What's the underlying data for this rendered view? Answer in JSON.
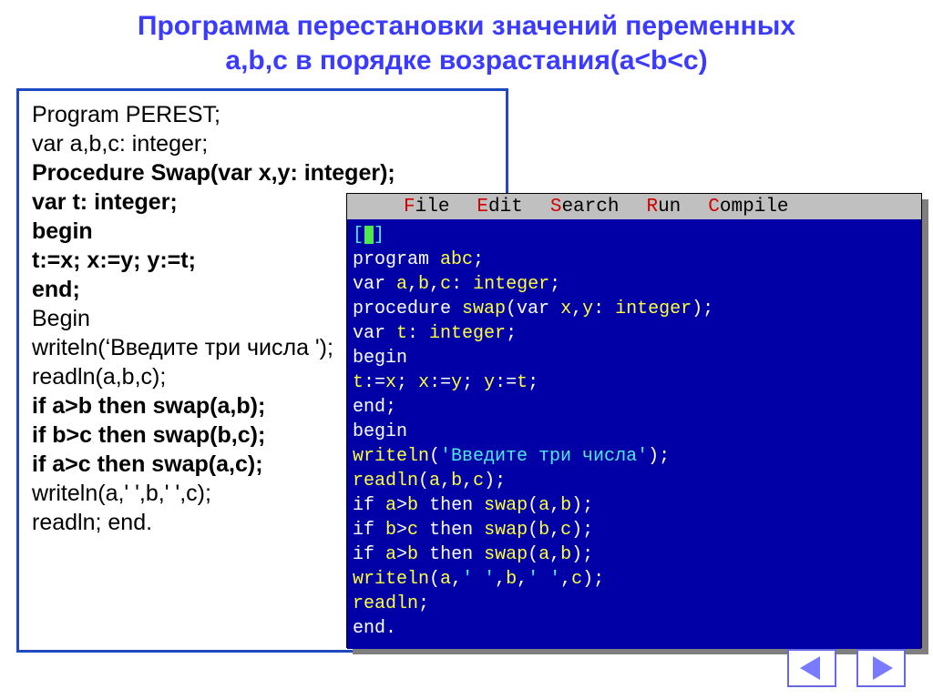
{
  "colors": {
    "title": "#3b3bff",
    "border": "#2048c0",
    "ide_bg": "#0000a6",
    "ide_menu_bg": "#c0c0c0",
    "ide_hotkey": "#d00000",
    "ide_cyan": "#4fe9e9",
    "ide_yellow": "#ffff3b",
    "ide_white": "#ffffff",
    "caret": "#4fe94f",
    "nav_border": "#6a6adf"
  },
  "title_line1": "Программа перестановки значений переменных",
  "title_line2": "a,b,c в порядке возрастания(a<b<c)",
  "left_code": [
    {
      "t": "Program PEREST;",
      "bold": false
    },
    {
      "t": "var a,b,c: integer;",
      "bold": false
    },
    {
      "t": "Procedure Swap(var x,y: integer);",
      "bold": true
    },
    {
      "t": "var t: integer;",
      "bold": true
    },
    {
      "t": "begin",
      "bold": true
    },
    {
      "t": "t:=x; x:=y; y:=t;",
      "bold": true
    },
    {
      "t": "end;",
      "bold": true
    },
    {
      "t": "Begin",
      "bold": false
    },
    {
      "t": "writeln(‘Введите три числа ');",
      "bold": false
    },
    {
      "t": "readln(a,b,c);",
      "bold": false
    },
    {
      "t": "if a>b then swap(a,b);",
      "bold": true
    },
    {
      "t": "if b>c then swap(b,c);",
      "bold": true
    },
    {
      "t": "if a>c then swap(a,c);",
      "bold": true
    },
    {
      "t": "writeln(a,' ',b,' ',c);",
      "bold": false
    },
    {
      "t": "readln;   end.",
      "bold": false
    }
  ],
  "ide": {
    "menu": [
      {
        "hot": "F",
        "rest": "ile"
      },
      {
        "hot": "E",
        "rest": "dit"
      },
      {
        "hot": "S",
        "rest": "earch"
      },
      {
        "hot": "R",
        "rest": "un"
      },
      {
        "hot": "C",
        "rest": "ompile"
      }
    ],
    "top_marker_left": "[",
    "top_marker_right": "]",
    "code": [
      [
        {
          "c": "white",
          "t": "program "
        },
        {
          "c": "yellow",
          "t": "abc"
        },
        {
          "c": "white",
          "t": ";"
        }
      ],
      [
        {
          "c": "white",
          "t": "var "
        },
        {
          "c": "yellow",
          "t": "a"
        },
        {
          "c": "white",
          "t": ","
        },
        {
          "c": "yellow",
          "t": "b"
        },
        {
          "c": "white",
          "t": ","
        },
        {
          "c": "yellow",
          "t": "c"
        },
        {
          "c": "white",
          "t": ": "
        },
        {
          "c": "yellow",
          "t": "integer"
        },
        {
          "c": "white",
          "t": ";"
        }
      ],
      [
        {
          "c": "white",
          "t": "procedure "
        },
        {
          "c": "yellow",
          "t": "swap"
        },
        {
          "c": "white",
          "t": "(var "
        },
        {
          "c": "yellow",
          "t": "x"
        },
        {
          "c": "white",
          "t": ","
        },
        {
          "c": "yellow",
          "t": "y"
        },
        {
          "c": "white",
          "t": ": "
        },
        {
          "c": "yellow",
          "t": "integer"
        },
        {
          "c": "white",
          "t": ");"
        }
      ],
      [
        {
          "c": "white",
          "t": "var "
        },
        {
          "c": "yellow",
          "t": "t"
        },
        {
          "c": "white",
          "t": ": "
        },
        {
          "c": "yellow",
          "t": "integer"
        },
        {
          "c": "white",
          "t": ";"
        }
      ],
      [
        {
          "c": "white",
          "t": "begin"
        }
      ],
      [
        {
          "c": "yellow",
          "t": "t"
        },
        {
          "c": "white",
          "t": ":="
        },
        {
          "c": "yellow",
          "t": "x"
        },
        {
          "c": "white",
          "t": "; "
        },
        {
          "c": "yellow",
          "t": "x"
        },
        {
          "c": "white",
          "t": ":="
        },
        {
          "c": "yellow",
          "t": "y"
        },
        {
          "c": "white",
          "t": "; "
        },
        {
          "c": "yellow",
          "t": "y"
        },
        {
          "c": "white",
          "t": ":="
        },
        {
          "c": "yellow",
          "t": "t"
        },
        {
          "c": "white",
          "t": ";"
        }
      ],
      [
        {
          "c": "white",
          "t": "end"
        },
        {
          "c": "white",
          "t": ";"
        }
      ],
      [
        {
          "c": "white",
          "t": "begin"
        }
      ],
      [
        {
          "c": "yellow",
          "t": "writeln"
        },
        {
          "c": "white",
          "t": "("
        },
        {
          "c": "cyan",
          "t": "'Введите три числа'"
        },
        {
          "c": "white",
          "t": ");"
        }
      ],
      [
        {
          "c": "yellow",
          "t": "readln"
        },
        {
          "c": "white",
          "t": "("
        },
        {
          "c": "yellow",
          "t": "a"
        },
        {
          "c": "white",
          "t": ","
        },
        {
          "c": "yellow",
          "t": "b"
        },
        {
          "c": "white",
          "t": ","
        },
        {
          "c": "yellow",
          "t": "c"
        },
        {
          "c": "white",
          "t": ");"
        }
      ],
      [
        {
          "c": "white",
          "t": "if "
        },
        {
          "c": "yellow",
          "t": "a"
        },
        {
          "c": "white",
          "t": ">"
        },
        {
          "c": "yellow",
          "t": "b"
        },
        {
          "c": "white",
          "t": " then "
        },
        {
          "c": "yellow",
          "t": "swap"
        },
        {
          "c": "white",
          "t": "("
        },
        {
          "c": "yellow",
          "t": "a"
        },
        {
          "c": "white",
          "t": ","
        },
        {
          "c": "yellow",
          "t": "b"
        },
        {
          "c": "white",
          "t": ");"
        }
      ],
      [
        {
          "c": "white",
          "t": "if "
        },
        {
          "c": "yellow",
          "t": "b"
        },
        {
          "c": "white",
          "t": ">"
        },
        {
          "c": "yellow",
          "t": "c"
        },
        {
          "c": "white",
          "t": " then "
        },
        {
          "c": "yellow",
          "t": "swap"
        },
        {
          "c": "white",
          "t": "("
        },
        {
          "c": "yellow",
          "t": "b"
        },
        {
          "c": "white",
          "t": ","
        },
        {
          "c": "yellow",
          "t": "c"
        },
        {
          "c": "white",
          "t": ");"
        }
      ],
      [
        {
          "c": "white",
          "t": "if "
        },
        {
          "c": "yellow",
          "t": "a"
        },
        {
          "c": "white",
          "t": ">"
        },
        {
          "c": "yellow",
          "t": "b"
        },
        {
          "c": "white",
          "t": " then "
        },
        {
          "c": "yellow",
          "t": "swap"
        },
        {
          "c": "white",
          "t": "("
        },
        {
          "c": "yellow",
          "t": "a"
        },
        {
          "c": "white",
          "t": ","
        },
        {
          "c": "yellow",
          "t": "b"
        },
        {
          "c": "white",
          "t": ");"
        }
      ],
      [
        {
          "c": "yellow",
          "t": "writeln"
        },
        {
          "c": "white",
          "t": "("
        },
        {
          "c": "yellow",
          "t": "a"
        },
        {
          "c": "white",
          "t": ","
        },
        {
          "c": "cyan",
          "t": "'  '"
        },
        {
          "c": "white",
          "t": ","
        },
        {
          "c": "yellow",
          "t": "b"
        },
        {
          "c": "white",
          "t": ","
        },
        {
          "c": "cyan",
          "t": "'  '"
        },
        {
          "c": "white",
          "t": ","
        },
        {
          "c": "yellow",
          "t": "c"
        },
        {
          "c": "white",
          "t": ");"
        }
      ],
      [
        {
          "c": "yellow",
          "t": "readln"
        },
        {
          "c": "white",
          "t": ";"
        }
      ],
      [
        {
          "c": "white",
          "t": "end"
        },
        {
          "c": "white",
          "t": "."
        }
      ]
    ]
  }
}
